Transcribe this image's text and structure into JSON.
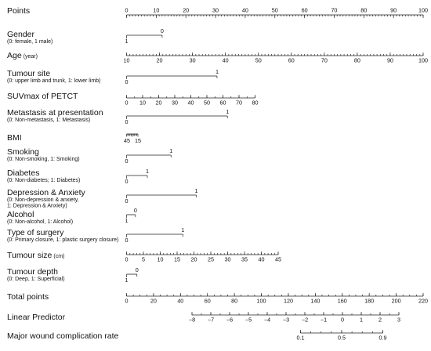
{
  "chart_data": {
    "type": "nomogram",
    "variables": [
      {
        "id": "points",
        "label": "Points",
        "unit": "",
        "sublabels": [],
        "kind": "continuous",
        "range": [
          0,
          100
        ],
        "major_step": 10,
        "minor_step": 1,
        "ticks": [
          0,
          10,
          20,
          30,
          40,
          50,
          60,
          70,
          80,
          90,
          100
        ],
        "label_pos": "above"
      },
      {
        "id": "gender",
        "label": "Gender",
        "unit": "",
        "sublabels": [
          "(0: female, 1 male)"
        ],
        "kind": "categorical",
        "categories": [
          {
            "label": "0",
            "points": 12
          },
          {
            "label": "1",
            "points": 0
          }
        ]
      },
      {
        "id": "age",
        "label": "Age",
        "unit": "(year)",
        "sublabels": [],
        "kind": "continuous",
        "range": [
          10,
          100
        ],
        "major_step": 10,
        "minor_step": 1,
        "ticks": [
          10,
          20,
          30,
          40,
          50,
          60,
          70,
          80,
          90,
          100
        ],
        "label_pos": "below"
      },
      {
        "id": "tumour_site",
        "label": "Tumour site",
        "unit": "",
        "sublabels": [
          "(0: upper limb and trunk, 1: lower limb)"
        ],
        "kind": "categorical",
        "categories": [
          {
            "label": "1",
            "points": 30.5
          },
          {
            "label": "0",
            "points": 0
          }
        ]
      },
      {
        "id": "suvmax",
        "label": "SUVmax of PETCT",
        "unit": "",
        "sublabels": [],
        "kind": "continuous",
        "range": [
          0,
          80
        ],
        "major_step": 10,
        "minor_step": 5,
        "ticks": [
          0,
          10,
          20,
          30,
          40,
          50,
          60,
          70,
          80
        ],
        "label_pos": "below"
      },
      {
        "id": "metastasis",
        "label": "Metastasis at presentation",
        "unit": "",
        "sublabels": [
          "(0: Non-metastasis, 1: Metastasis)"
        ],
        "kind": "categorical",
        "categories": [
          {
            "label": "1",
            "points": 34
          },
          {
            "label": "0",
            "points": 0
          }
        ]
      },
      {
        "id": "bmi",
        "label": "BMI",
        "unit": "",
        "sublabels": [],
        "kind": "bmi",
        "ticks": [
          "45",
          "15"
        ]
      },
      {
        "id": "smoking",
        "label": "Smoking",
        "unit": "",
        "sublabels": [
          "(0: Non-smoking, 1: Smoking)"
        ],
        "kind": "categorical",
        "categories": [
          {
            "label": "1",
            "points": 15
          },
          {
            "label": "0",
            "points": 0
          }
        ]
      },
      {
        "id": "diabetes",
        "label": "Diabetes",
        "unit": "",
        "sublabels": [
          "(0: Non-diabetes; 1: Diabetes)"
        ],
        "kind": "categorical",
        "categories": [
          {
            "label": "1",
            "points": 7
          },
          {
            "label": "0",
            "points": 0
          }
        ]
      },
      {
        "id": "depression",
        "label": "Depression & Anxiety",
        "unit": "",
        "sublabels": [
          "(0: Non-depression & anxiety,",
          "1: Depression & Anxiety)"
        ],
        "kind": "categorical",
        "categories": [
          {
            "label": "1",
            "points": 23.5
          },
          {
            "label": "0",
            "points": 0
          }
        ]
      },
      {
        "id": "alcohol",
        "label": "Alcohol",
        "unit": "",
        "sublabels": [
          "(0: Non-alcohol, 1: Alcohol)"
        ],
        "kind": "categorical",
        "categories": [
          {
            "label": "0",
            "points": 3
          },
          {
            "label": "1",
            "points": 0
          }
        ]
      },
      {
        "id": "surgery",
        "label": "Type of surgery",
        "unit": "",
        "sublabels": [
          "(0: Primary closure, 1: plastic surgery closure)"
        ],
        "kind": "categorical",
        "categories": [
          {
            "label": "1",
            "points": 19
          },
          {
            "label": "0",
            "points": 0
          }
        ]
      },
      {
        "id": "tumour_size",
        "label": "Tumour size",
        "unit": "(cm)",
        "sublabels": [],
        "kind": "continuous",
        "range": [
          0,
          45
        ],
        "major_step": 5,
        "minor_step": 1,
        "ticks": [
          0,
          5,
          10,
          15,
          20,
          25,
          30,
          35,
          40,
          45
        ],
        "label_pos": "below"
      },
      {
        "id": "tumour_depth",
        "label": "Tumour depth",
        "unit": "",
        "sublabels": [
          "(0: Deep, 1: Superficial)"
        ],
        "kind": "categorical",
        "categories": [
          {
            "label": "0",
            "points": 3.5
          },
          {
            "label": "1",
            "points": 0
          }
        ]
      },
      {
        "id": "total_points",
        "label": "Total points",
        "unit": "",
        "sublabels": [],
        "kind": "continuous",
        "range": [
          0,
          220
        ],
        "major_step": 20,
        "minor_step": 5,
        "ticks": [
          0,
          20,
          40,
          60,
          80,
          100,
          120,
          140,
          160,
          180,
          200,
          220
        ],
        "label_pos": "below"
      },
      {
        "id": "linear_predictor",
        "label": "Linear Predictor",
        "unit": "",
        "sublabels": [],
        "kind": "continuous",
        "range": [
          -8,
          3
        ],
        "major_step": 1,
        "minor_step": 0.5,
        "ticks": [
          "−8",
          "−7",
          "−6",
          "−5",
          "−4",
          "−3",
          "−2",
          "−1",
          "0",
          "1",
          "2",
          "3"
        ],
        "label_pos": "below"
      },
      {
        "id": "complication_rate",
        "label": "Major wound complication rate",
        "unit": "",
        "sublabels": [],
        "kind": "continuous",
        "range": [
          0.1,
          0.9
        ],
        "major_step": 0.4,
        "minor_step": 0.1,
        "ticks": [
          "0.1",
          "0.5",
          "0.9"
        ],
        "label_pos": "below"
      }
    ]
  }
}
